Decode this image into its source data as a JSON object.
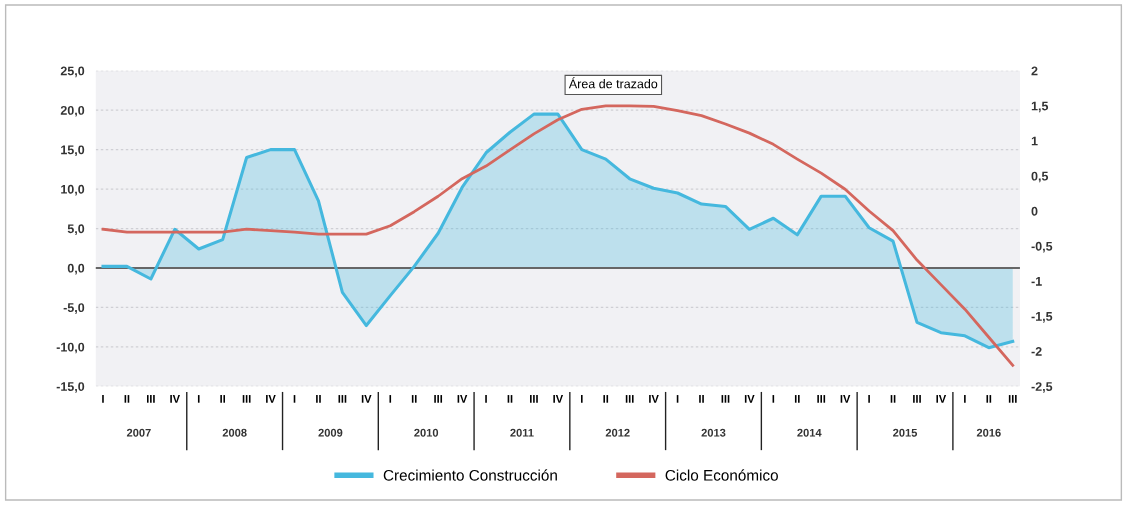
{
  "chart_data": {
    "type": "line",
    "categories": [
      "I",
      "II",
      "III",
      "IV",
      "I",
      "II",
      "III",
      "IV",
      "I",
      "II",
      "III",
      "IV",
      "I",
      "II",
      "III",
      "IV",
      "I",
      "II",
      "III",
      "IV",
      "I",
      "II",
      "III",
      "IV",
      "I",
      "II",
      "III",
      "IV",
      "I",
      "II",
      "III",
      "IV",
      "I",
      "II",
      "III",
      "IV",
      "I",
      "II",
      "III"
    ],
    "series": [
      {
        "name": "Crecimiento Construcción",
        "type": "area",
        "color": "#45b8de",
        "values": [
          0.2,
          0.2,
          -1.4,
          4.9,
          2.4,
          3.6,
          14.0,
          15.0,
          15.0,
          8.5,
          -3.1,
          -7.3,
          -3.5,
          0.2,
          4.4,
          10.2,
          14.6,
          17.2,
          19.5,
          19.5,
          15.0,
          13.8,
          11.3,
          10.1,
          9.5,
          8.1,
          7.8,
          4.9,
          6.3,
          4.2,
          9.1,
          9.1,
          5.1,
          3.4,
          -6.9,
          -8.2,
          -8.6,
          -10.1,
          -9.3
        ]
      },
      {
        "name": "Ciclo Económico",
        "axis": "y2",
        "color": "#d4675e",
        "values": [
          -0.26,
          -0.3,
          -0.3,
          -0.3,
          -0.3,
          -0.3,
          -0.26,
          -0.28,
          -0.3,
          -0.33,
          -0.33,
          -0.33,
          -0.21,
          -0.01,
          0.21,
          0.46,
          0.64,
          0.87,
          1.1,
          1.3,
          1.45,
          1.5,
          1.5,
          1.49,
          1.43,
          1.36,
          1.24,
          1.11,
          0.95,
          0.74,
          0.54,
          0.31,
          0.0,
          -0.28,
          -0.7,
          -1.05,
          -1.4,
          -1.8,
          -2.2
        ]
      }
    ],
    "ylim": [
      -15,
      25
    ],
    "yticks": [
      {
        "value": -15,
        "label": "-15,0"
      },
      {
        "value": -10,
        "label": "-10,0"
      },
      {
        "value": -5,
        "label": "-5,0"
      },
      {
        "value": 0,
        "label": "0,0"
      },
      {
        "value": 5,
        "label": "5,0"
      },
      {
        "value": 10,
        "label": "10,0"
      },
      {
        "value": 15,
        "label": "15,0"
      },
      {
        "value": 20,
        "label": "20,0"
      },
      {
        "value": 25,
        "label": "25,0"
      }
    ],
    "y2lim": [
      -2.5,
      2
    ],
    "y2ticks": [
      {
        "value": -2.5,
        "label": "-2,5"
      },
      -2,
      {
        "value": -1.5,
        "label": "-1,5"
      },
      -1,
      {
        "value": -0.5,
        "label": "-0,5"
      },
      0,
      {
        "value": 0.5,
        "label": "0,5"
      },
      1,
      {
        "value": 1.5,
        "label": "1,5"
      },
      2
    ],
    "ref_lines": [
      {
        "axis": "y",
        "value": 0,
        "color": "#666666"
      }
    ],
    "grid": "y",
    "legend": "bottom",
    "annotations": [
      "2007",
      "2008",
      "2009",
      "2010",
      "2011",
      "2012",
      "2013",
      "2014",
      "2015",
      "2016",
      "Área de trazado"
    ]
  }
}
